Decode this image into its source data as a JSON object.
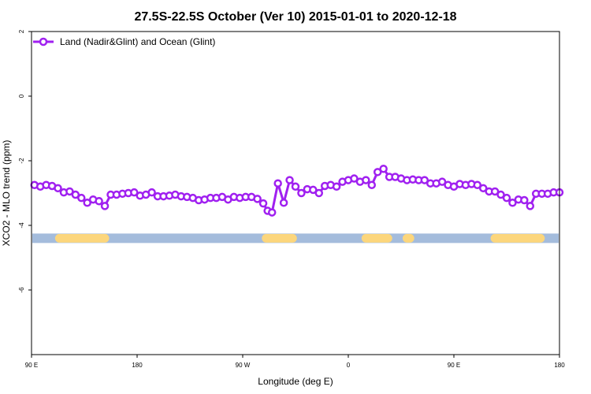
{
  "chart_data": {
    "type": "line",
    "title": "27.5S-22.5S October (Ver 10)   2015-01-01 to 2020-12-18",
    "xlabel": "Longitude (deg E)",
    "ylabel": "XCO2 - MLO trend (ppm)",
    "xlim": [
      90,
      450
    ],
    "ylim": [
      -8,
      2
    ],
    "xticks": [
      {
        "value": 90,
        "label": "90 E"
      },
      {
        "value": 162,
        "label": "180"
      },
      {
        "value": 234,
        "label": "90 W"
      },
      {
        "value": 306,
        "label": "0"
      },
      {
        "value": 378,
        "label": "90 E"
      },
      {
        "value": 450,
        "label": "180"
      }
    ],
    "yticks": [
      {
        "value": 2,
        "label": "2"
      },
      {
        "value": 0,
        "label": "0"
      },
      {
        "value": -2,
        "label": "-2"
      },
      {
        "value": -4,
        "label": "-4"
      },
      {
        "value": -6,
        "label": "-6"
      }
    ],
    "legend": {
      "position": "top-left"
    },
    "series": [
      {
        "name": "Land (Nadir&Glint) and Ocean (Glint)",
        "color": "#a020f0",
        "x": [
          92,
          96,
          100,
          104,
          108,
          112,
          116,
          120,
          124,
          128,
          132,
          136,
          140,
          144,
          148,
          152,
          156,
          160,
          164,
          168,
          172,
          176,
          180,
          184,
          188,
          192,
          196,
          200,
          204,
          208,
          212,
          216,
          220,
          224,
          228,
          232,
          236,
          240,
          244,
          248,
          251,
          254,
          258,
          262,
          266,
          270,
          274,
          278,
          282,
          286,
          290,
          294,
          298,
          302,
          306,
          310,
          314,
          318,
          322,
          326,
          330,
          334,
          338,
          342,
          346,
          350,
          354,
          358,
          362,
          366,
          370,
          374,
          378,
          382,
          386,
          390,
          394,
          398,
          402,
          406,
          410,
          414,
          418,
          422,
          426,
          430,
          434,
          438,
          442,
          446,
          450
        ],
        "y": [
          -2.75,
          -2.8,
          -2.75,
          -2.78,
          -2.85,
          -2.98,
          -2.95,
          -3.05,
          -3.15,
          -3.3,
          -3.2,
          -3.25,
          -3.4,
          -3.05,
          -3.05,
          -3.02,
          -3.0,
          -2.98,
          -3.08,
          -3.05,
          -2.98,
          -3.1,
          -3.1,
          -3.08,
          -3.05,
          -3.1,
          -3.12,
          -3.15,
          -3.22,
          -3.2,
          -3.15,
          -3.15,
          -3.12,
          -3.2,
          -3.12,
          -3.15,
          -3.12,
          -3.12,
          -3.18,
          -3.32,
          -3.55,
          -3.6,
          -2.7,
          -3.3,
          -2.6,
          -2.8,
          -3.0,
          -2.88,
          -2.9,
          -3.0,
          -2.78,
          -2.75,
          -2.8,
          -2.65,
          -2.6,
          -2.55,
          -2.65,
          -2.6,
          -2.75,
          -2.35,
          -2.25,
          -2.5,
          -2.5,
          -2.55,
          -2.6,
          -2.58,
          -2.6,
          -2.6,
          -2.7,
          -2.7,
          -2.65,
          -2.75,
          -2.8,
          -2.72,
          -2.75,
          -2.72,
          -2.75,
          -2.85,
          -2.95,
          -2.95,
          -3.05,
          -3.15,
          -3.3,
          -3.2,
          -3.22,
          -3.4,
          -3.02,
          -3.02,
          -3.02,
          -2.98,
          -2.98
        ]
      }
    ],
    "land_ocean_strip": {
      "y": -4.4,
      "ocean_color": "#a4bcdc",
      "land_color": "#fcd67c",
      "land_segments": [
        [
          109,
          140
        ],
        [
          250,
          268
        ],
        [
          318,
          333
        ],
        [
          346,
          348
        ],
        [
          406,
          437
        ]
      ]
    }
  }
}
